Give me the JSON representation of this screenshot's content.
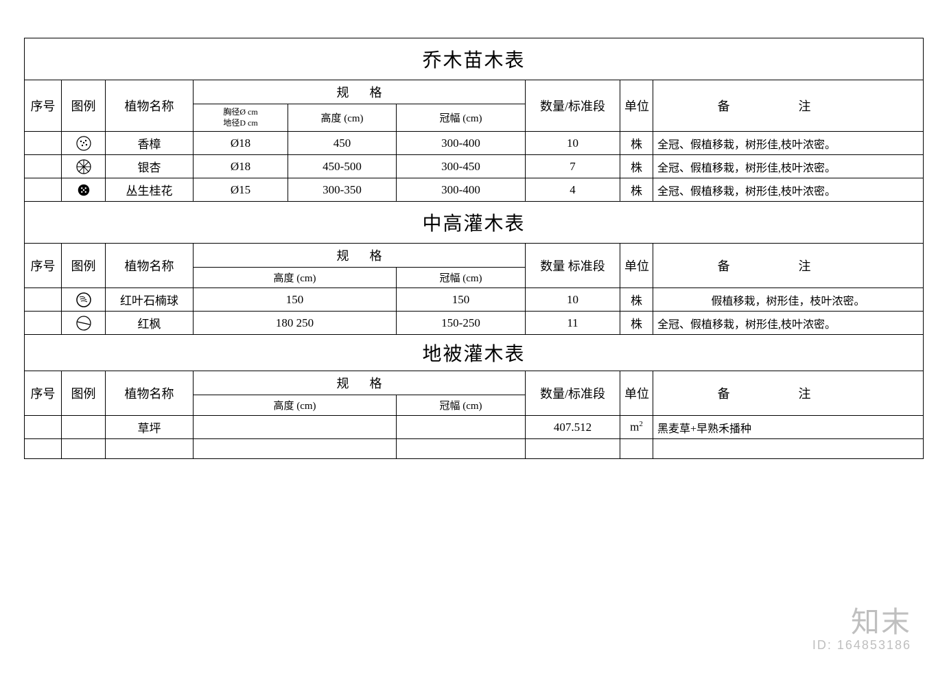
{
  "watermark": {
    "brand": "知末",
    "id_label": "ID: 164853186"
  },
  "col_widths": {
    "seq": 50,
    "legend": 60,
    "name": 120,
    "spec_a": 130,
    "spec_b": 150,
    "spec_c": 180,
    "qty": 130,
    "unit": 45,
    "remark": 395
  },
  "headers": {
    "seq": "序号",
    "legend": "图例",
    "name": "植物名称",
    "spec": "规格",
    "qty": "数量/标准段",
    "qty2": "数量 标准段",
    "unit": "单位",
    "remark": "备注",
    "diam_line1": "胸径Ø  cm",
    "diam_line2": "地径D  cm",
    "height": "高度 (cm)",
    "crown": "冠幅 (cm)"
  },
  "section1": {
    "title": "乔木苗木表",
    "rows": [
      {
        "icon": "dots-circle",
        "name": "香樟",
        "diam": "Ø18",
        "height": "450",
        "crown": "300-400",
        "qty": "10",
        "unit": "株",
        "remark": "全冠、假植移栽，树形佳,枝叶浓密。"
      },
      {
        "icon": "spoke-circle",
        "name": "银杏",
        "diam": "Ø18",
        "height": "450-500",
        "crown": "300-450",
        "qty": "7",
        "unit": "株",
        "remark": "全冠、假植移栽，树形佳,枝叶浓密。"
      },
      {
        "icon": "solid-dots",
        "name": "丛生桂花",
        "diam": "Ø15",
        "height": "300-350",
        "crown": "300-400",
        "qty": "4",
        "unit": "株",
        "remark": "全冠、假植移栽，树形佳,枝叶浓密。"
      }
    ]
  },
  "section2": {
    "title": "中高灌木表",
    "rows": [
      {
        "icon": "texture-circle",
        "name": "红叶石楠球",
        "height": "150",
        "crown": "150",
        "qty": "10",
        "unit": "株",
        "remark": "假植移栽，树形佳，枝叶浓密。"
      },
      {
        "icon": "half-circle",
        "name": "红枫",
        "height": "180 250",
        "crown": "150-250",
        "qty": "11",
        "unit": "株",
        "remark": "全冠、假植移栽，树形佳,枝叶浓密。"
      }
    ]
  },
  "section3": {
    "title": "地被灌木表",
    "rows": [
      {
        "icon": "",
        "name": "草坪",
        "height": "",
        "crown": "",
        "qty": "407.512",
        "unit_html": "m<span class='sup'>2</span>",
        "remark": "黑麦草+早熟禾播种"
      },
      {
        "icon": "",
        "name": "",
        "height": "",
        "crown": "",
        "qty": "",
        "unit_html": "",
        "remark": ""
      }
    ]
  },
  "style": {
    "border_color": "#000000",
    "background_color": "#ffffff",
    "text_color": "#000000",
    "title_fontsize": 28,
    "header_fontsize": 18,
    "data_fontsize": 17,
    "font_family": "SimSun"
  }
}
